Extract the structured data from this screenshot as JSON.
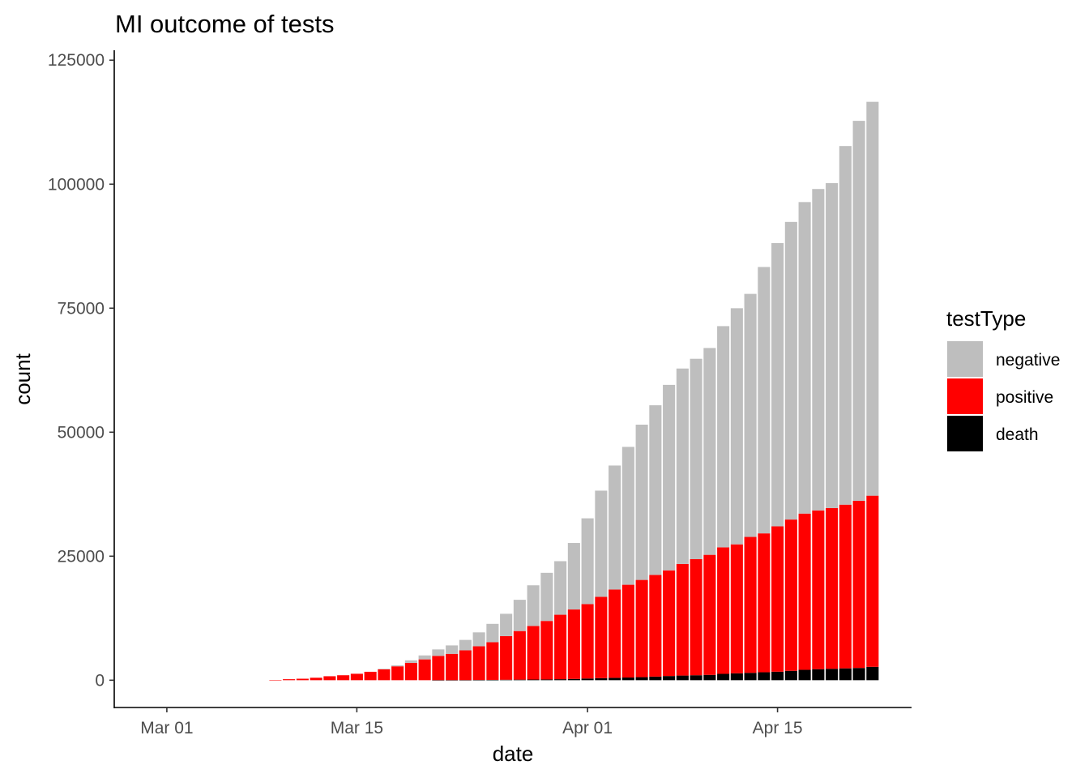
{
  "chart_data": {
    "type": "bar",
    "stacked": true,
    "title": "MI outcome of tests",
    "xlabel": "date",
    "ylabel": "count",
    "ylim": [
      -5500,
      127000
    ],
    "grid": false,
    "legend": {
      "title": "testType",
      "placement": "right"
    },
    "x_ticks": [
      {
        "label": "Mar 01",
        "date": "2020-03-01"
      },
      {
        "label": "Mar 15",
        "date": "2020-03-15"
      },
      {
        "label": "Apr 01",
        "date": "2020-04-01"
      },
      {
        "label": "Apr 15",
        "date": "2020-04-15"
      }
    ],
    "y_ticks": [
      {
        "label": "0",
        "value": 0
      },
      {
        "label": "25000",
        "value": 25000
      },
      {
        "label": "50000",
        "value": 50000
      },
      {
        "label": "75000",
        "value": 75000
      },
      {
        "label": "100000",
        "value": 100000
      },
      {
        "label": "125000",
        "value": 125000
      }
    ],
    "dates": [
      "2020-02-29",
      "2020-03-01",
      "2020-03-02",
      "2020-03-03",
      "2020-03-04",
      "2020-03-05",
      "2020-03-06",
      "2020-03-07",
      "2020-03-08",
      "2020-03-09",
      "2020-03-10",
      "2020-03-11",
      "2020-03-12",
      "2020-03-13",
      "2020-03-14",
      "2020-03-15",
      "2020-03-16",
      "2020-03-17",
      "2020-03-18",
      "2020-03-19",
      "2020-03-20",
      "2020-03-21",
      "2020-03-22",
      "2020-03-23",
      "2020-03-24",
      "2020-03-25",
      "2020-03-26",
      "2020-03-27",
      "2020-03-28",
      "2020-03-29",
      "2020-03-30",
      "2020-03-31",
      "2020-04-01",
      "2020-04-02",
      "2020-04-03",
      "2020-04-04",
      "2020-04-05",
      "2020-04-06",
      "2020-04-07",
      "2020-04-08",
      "2020-04-09",
      "2020-04-10",
      "2020-04-11",
      "2020-04-12",
      "2020-04-13",
      "2020-04-14",
      "2020-04-15",
      "2020-04-16",
      "2020-04-17",
      "2020-04-18",
      "2020-04-19",
      "2020-04-20",
      "2020-04-21",
      "2020-04-22"
    ],
    "series": [
      {
        "name": "death",
        "color": "#000000",
        "values": [
          0,
          0,
          0,
          0,
          0,
          0,
          0,
          0,
          0,
          0,
          0,
          0,
          0,
          0,
          0,
          0,
          0,
          0,
          0,
          0,
          0,
          10,
          15,
          24,
          43,
          60,
          92,
          111,
          132,
          151,
          198,
          259,
          337,
          417,
          479,
          540,
          617,
          727,
          845,
          937,
          1000,
          1076,
          1281,
          1392,
          1487,
          1602,
          1718,
          1891,
          2093,
          2227,
          2308,
          2391,
          2468,
          2700
        ]
      },
      {
        "name": "positive",
        "color": "#ff0000",
        "values": [
          0,
          0,
          0,
          0,
          0,
          0,
          0,
          0,
          0,
          50,
          200,
          300,
          500,
          800,
          1000,
          1300,
          1700,
          2200,
          2800,
          3500,
          4200,
          4900,
          5300,
          6000,
          6800,
          7600,
          8800,
          9800,
          10800,
          11800,
          13000,
          14000,
          15000,
          16400,
          17800,
          18700,
          19600,
          20500,
          21300,
          22500,
          23400,
          24200,
          25500,
          26000,
          27400,
          28000,
          29300,
          30500,
          31500,
          32000,
          32400,
          33000,
          33700,
          34500
        ]
      },
      {
        "name": "negative",
        "color": "#bebebe",
        "values": [
          0,
          0,
          0,
          0,
          0,
          0,
          0,
          0,
          0,
          0,
          0,
          0,
          0,
          0,
          0,
          0,
          0,
          100,
          200,
          500,
          800,
          1300,
          1700,
          2100,
          2800,
          3700,
          4500,
          6300,
          8200,
          9700,
          10800,
          13400,
          17300,
          21400,
          25000,
          27800,
          31300,
          34200,
          37400,
          39400,
          40400,
          41700,
          44600,
          47600,
          49000,
          53700,
          57100,
          60000,
          62800,
          64800,
          65500,
          72300,
          76600,
          79400
        ]
      }
    ]
  }
}
